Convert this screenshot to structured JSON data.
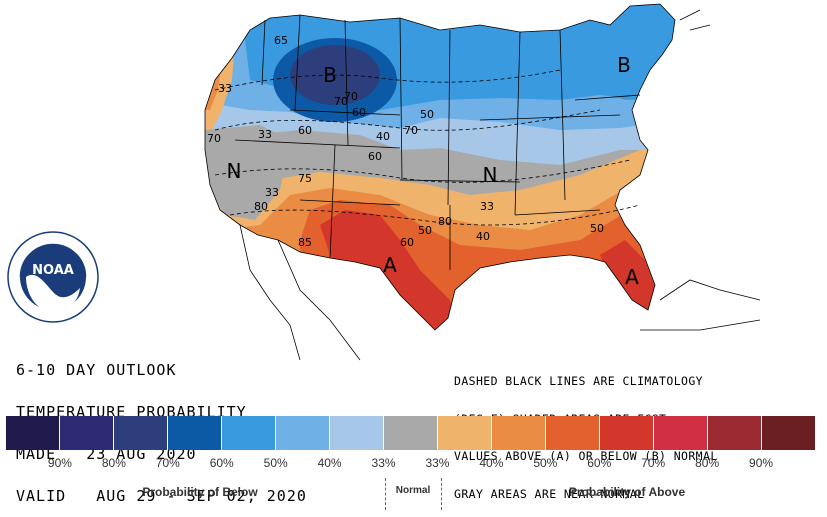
{
  "map": {
    "region_labels": [
      {
        "id": "b-north-plains",
        "text": "B"
      },
      {
        "id": "b-northeast",
        "text": "B"
      },
      {
        "id": "n-west",
        "text": "N"
      },
      {
        "id": "n-central",
        "text": "N"
      },
      {
        "id": "a-south",
        "text": "A"
      },
      {
        "id": "a-florida",
        "text": "A"
      }
    ],
    "contour_labels": [
      "65",
      "33",
      "70",
      "33",
      "33",
      "80",
      "85",
      "60",
      "70",
      "60",
      "40",
      "70",
      "50",
      "75",
      "80",
      "60",
      "40",
      "33",
      "50",
      "60",
      "50",
      "70"
    ],
    "colors": {
      "below_90": "#211b4d",
      "below_80": "#2c2a72",
      "below_70": "#2c3f7c",
      "below_60": "#0c5aa5",
      "below_50": "#3a9ae0",
      "below_40": "#6fb0e6",
      "below_33": "#a7c7e8",
      "normal": "#a9a9a9",
      "above_33": "#f0b36c",
      "above_40": "#eb8c44",
      "above_50": "#e2612c",
      "above_60": "#d3372b",
      "above_70": "#d03041",
      "above_80": "#9b2a32",
      "above_90": "#6b1f22"
    }
  },
  "outlook": {
    "line1": "6-10 DAY OUTLOOK",
    "line2": "TEMPERATURE PROBABILITY",
    "line3": "MADE   23 AUG 2020",
    "line4": "VALID   AUG 29 - SEP 02, 2020"
  },
  "notes": {
    "line1": "DASHED BLACK LINES ARE CLIMATOLOGY",
    "line2": "(DEG F) SHADED AREAS ARE FCST",
    "line3": "VALUES ABOVE (A) OR BELOW (B) NORMAL",
    "line4": "GRAY AREAS ARE NEAR-NORMAL"
  },
  "logo": {
    "text": "NOAA"
  },
  "legend": {
    "swatches": [
      "#211b4d",
      "#2c2a72",
      "#2c3f7c",
      "#0c5aa5",
      "#3a9ae0",
      "#6fb0e6",
      "#a7c7e8",
      "#a9a9a9",
      "#f0b36c",
      "#eb8c44",
      "#e2612c",
      "#d3372b",
      "#d03041",
      "#9b2a32",
      "#6b1f22"
    ],
    "tick_labels": [
      "90%",
      "80%",
      "70%",
      "60%",
      "50%",
      "40%",
      "33%",
      "33%",
      "40%",
      "50%",
      "60%",
      "70%",
      "80%",
      "90%"
    ],
    "below_label": "Probability of Below",
    "normal_label": "Normal",
    "above_label": "Probability of Above"
  }
}
